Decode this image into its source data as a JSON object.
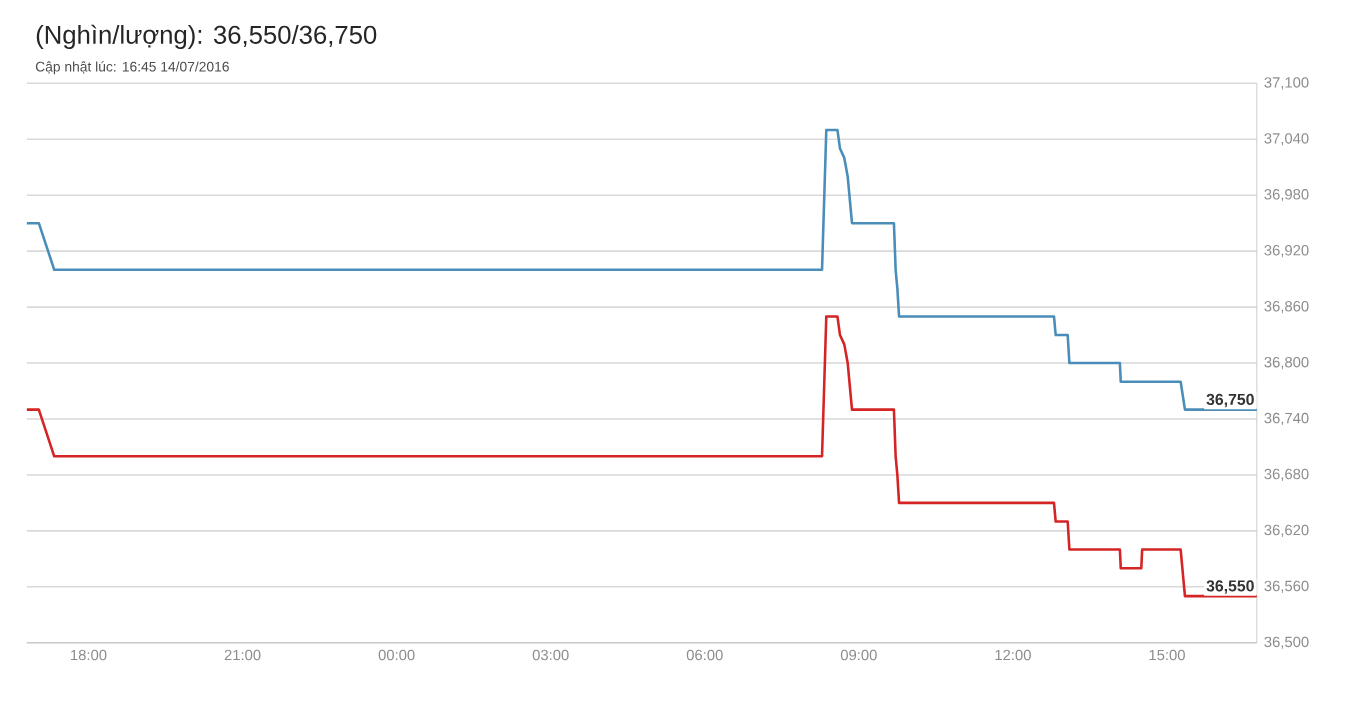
{
  "chart_data": {
    "type": "line",
    "title": "(Nghìn/lượng): 36,550/36,750",
    "subtitle": "Cập nhật lúc: 16:45 14/07/2016",
    "xlim": [
      "2016-07-13T16:48",
      "2016-07-14T16:45"
    ],
    "xticks": [
      {
        "value": "2016-07-13T18:00",
        "label": "18:00"
      },
      {
        "value": "2016-07-13T21:00",
        "label": "21:00"
      },
      {
        "value": "2016-07-14T00:00",
        "label": "00:00"
      },
      {
        "value": "2016-07-14T03:00",
        "label": "03:00"
      },
      {
        "value": "2016-07-14T06:00",
        "label": "06:00"
      },
      {
        "value": "2016-07-14T09:00",
        "label": "09:00"
      },
      {
        "value": "2016-07-14T12:00",
        "label": "12:00"
      },
      {
        "value": "2016-07-14T15:00",
        "label": "15:00"
      }
    ],
    "ylim": [
      36500,
      37100
    ],
    "yticks": [
      {
        "value": 36500,
        "label": "36,500"
      },
      {
        "value": 36560,
        "label": "36,560"
      },
      {
        "value": 36620,
        "label": "36,620"
      },
      {
        "value": 36680,
        "label": "36,680"
      },
      {
        "value": 36740,
        "label": "36,740"
      },
      {
        "value": 36800,
        "label": "36,800"
      },
      {
        "value": 36860,
        "label": "36,860"
      },
      {
        "value": 36920,
        "label": "36,920"
      },
      {
        "value": 36980,
        "label": "36,980"
      },
      {
        "value": 37040,
        "label": "37,040"
      },
      {
        "value": 37100,
        "label": "37,100"
      }
    ],
    "grid": "y",
    "series": [
      {
        "color": "#4a8db8",
        "x": [
          "2016-07-13T16:48",
          "2016-07-13T17:02",
          "2016-07-13T17:20",
          "2016-07-14T08:17",
          "2016-07-14T08:22",
          "2016-07-14T08:35",
          "2016-07-14T08:38",
          "2016-07-14T08:43",
          "2016-07-14T08:47",
          "2016-07-14T08:52",
          "2016-07-14T09:41",
          "2016-07-14T09:43",
          "2016-07-14T09:45",
          "2016-07-14T09:47",
          "2016-07-14T12:48",
          "2016-07-14T12:50",
          "2016-07-14T13:04",
          "2016-07-14T13:06",
          "2016-07-14T14:05",
          "2016-07-14T14:06",
          "2016-07-14T15:16",
          "2016-07-14T15:21",
          "2016-07-14T16:45"
        ],
        "values": [
          36950,
          36950,
          36900,
          36900,
          37050,
          37050,
          37030,
          37020,
          37000,
          36950,
          36950,
          36900,
          36880,
          36850,
          36850,
          36830,
          36830,
          36800,
          36800,
          36780,
          36780,
          36750,
          36750
        ]
      },
      {
        "color": "#d42424",
        "x": [
          "2016-07-13T16:48",
          "2016-07-13T17:02",
          "2016-07-13T17:20",
          "2016-07-14T08:17",
          "2016-07-14T08:22",
          "2016-07-14T08:35",
          "2016-07-14T08:38",
          "2016-07-14T08:43",
          "2016-07-14T08:47",
          "2016-07-14T08:52",
          "2016-07-14T09:41",
          "2016-07-14T09:43",
          "2016-07-14T09:45",
          "2016-07-14T09:47",
          "2016-07-14T12:48",
          "2016-07-14T12:50",
          "2016-07-14T13:04",
          "2016-07-14T13:06",
          "2016-07-14T14:05",
          "2016-07-14T14:06",
          "2016-07-14T14:30",
          "2016-07-14T14:31",
          "2016-07-14T15:16",
          "2016-07-14T15:21",
          "2016-07-14T16:45"
        ],
        "values": [
          36750,
          36750,
          36700,
          36700,
          36850,
          36850,
          36830,
          36820,
          36800,
          36750,
          36750,
          36700,
          36680,
          36650,
          36650,
          36630,
          36630,
          36600,
          36600,
          36580,
          36580,
          36600,
          36600,
          36550,
          36550
        ]
      }
    ],
    "annotations": [
      {
        "text": "36,750",
        "x": "2016-07-14T16:45",
        "y": 36750
      },
      {
        "text": "36,550",
        "x": "2016-07-14T16:45",
        "y": 36550
      }
    ]
  }
}
